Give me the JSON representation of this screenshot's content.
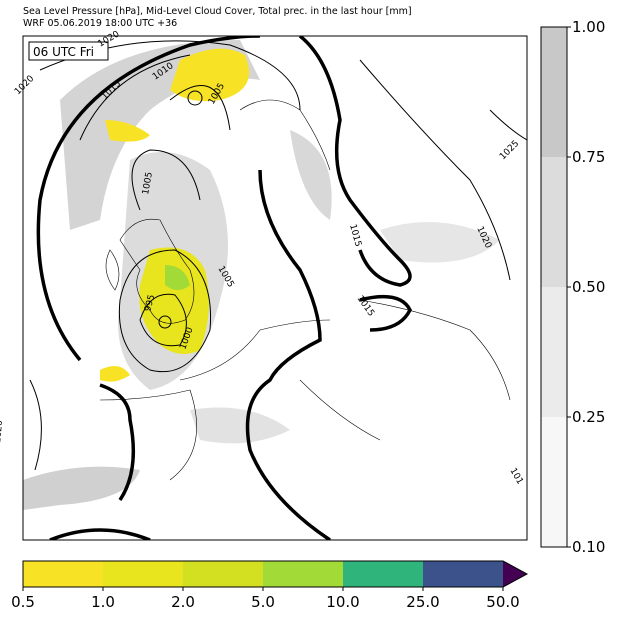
{
  "header": {
    "title": "Sea Level Pressure [hPa], Mid-Level Cloud Cover, Total prec. in the last hour [mm]",
    "subtitle": "WRF 05.06.2019 18:00 UTC +36"
  },
  "map": {
    "time_label": "06 UTC Fri",
    "isobar_labels": [
      "1020",
      "1020",
      "1015",
      "1010",
      "1005",
      "1005",
      "995",
      "1000",
      "1005",
      "1015",
      "1015",
      "1020",
      "1025",
      "1020",
      "101"
    ]
  },
  "cloud_colorbar": {
    "ticks": [
      "0.10",
      "0.25",
      "0.50",
      "0.75",
      "1.00"
    ],
    "colors": [
      "#f7f7f7",
      "#ebebeb",
      "#dcdcdc",
      "#c8c8c8"
    ]
  },
  "precip_colorbar": {
    "ticks": [
      "0.5",
      "1.0",
      "2.0",
      "5.0",
      "10.0",
      "25.0",
      "50.0"
    ],
    "colors": [
      "#f7e225",
      "#e8e51f",
      "#d2e021",
      "#a2da37",
      "#2fb47c",
      "#3b528b"
    ],
    "extend_color": "#440154"
  }
}
